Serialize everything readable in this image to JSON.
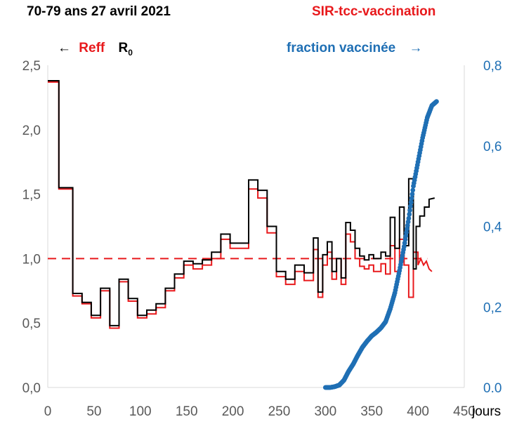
{
  "header": {
    "title": "70-79 ans  27 avril 2021",
    "model": "SIR-tcc-vaccination",
    "legend_left_arrow": "←",
    "legend_reff": "Reff",
    "legend_r0": "R",
    "legend_r0_sub": "0",
    "legend_right": "fraction vaccinée",
    "legend_right_arrow": "→"
  },
  "colors": {
    "reff": "#e8191c",
    "r0": "#000000",
    "vaccine": "#1f6fb4",
    "threshold": "#e8191c"
  },
  "chart_data": {
    "type": "line",
    "xlabel": "jours",
    "xlim": [
      0,
      450
    ],
    "x_ticks": [
      "0",
      "50",
      "100",
      "150",
      "200",
      "250",
      "300",
      "350",
      "400",
      "450"
    ],
    "y_left": {
      "ylim": [
        0,
        2.5
      ],
      "ticks": [
        "0,0",
        "0,5",
        "1,0",
        "1,5",
        "2,0",
        "2,5"
      ]
    },
    "y_right": {
      "ylim": [
        0,
        0.8
      ],
      "ticks": [
        "0.0",
        "0,2",
        "0,4",
        "0,6",
        "0,8"
      ]
    },
    "threshold": {
      "value": 1.0,
      "style": "dashed"
    },
    "series": [
      {
        "name": "Reff",
        "axis": "left",
        "step": true,
        "points": [
          [
            0,
            2.37
          ],
          [
            10,
            2.37
          ],
          [
            10,
            2.37
          ],
          [
            12,
            2.37
          ],
          [
            12,
            1.54
          ],
          [
            17,
            1.54
          ],
          [
            17,
            1.54
          ],
          [
            27,
            1.54
          ],
          [
            27,
            0.71
          ],
          [
            37,
            0.71
          ],
          [
            37,
            0.65
          ],
          [
            47,
            0.65
          ],
          [
            47,
            0.54
          ],
          [
            57,
            0.54
          ],
          [
            57,
            0.75
          ],
          [
            67,
            0.75
          ],
          [
            67,
            0.46
          ],
          [
            77,
            0.46
          ],
          [
            77,
            0.82
          ],
          [
            87,
            0.82
          ],
          [
            87,
            0.67
          ],
          [
            97,
            0.67
          ],
          [
            97,
            0.54
          ],
          [
            107,
            0.54
          ],
          [
            107,
            0.57
          ],
          [
            117,
            0.57
          ],
          [
            117,
            0.62
          ],
          [
            127,
            0.62
          ],
          [
            127,
            0.75
          ],
          [
            137,
            0.75
          ],
          [
            137,
            0.85
          ],
          [
            147,
            0.85
          ],
          [
            147,
            0.95
          ],
          [
            157,
            0.95
          ],
          [
            157,
            0.92
          ],
          [
            167,
            0.92
          ],
          [
            167,
            0.95
          ],
          [
            177,
            0.95
          ],
          [
            177,
            1.0
          ],
          [
            187,
            1.0
          ],
          [
            187,
            1.15
          ],
          [
            197,
            1.15
          ],
          [
            197,
            1.08
          ],
          [
            217,
            1.08
          ],
          [
            217,
            1.54
          ],
          [
            227,
            1.54
          ],
          [
            227,
            1.47
          ],
          [
            237,
            1.47
          ],
          [
            237,
            1.2
          ],
          [
            247,
            1.2
          ],
          [
            247,
            0.86
          ],
          [
            257,
            0.86
          ],
          [
            257,
            0.8
          ],
          [
            267,
            0.8
          ],
          [
            267,
            0.9
          ],
          [
            277,
            0.9
          ],
          [
            277,
            0.83
          ],
          [
            287,
            0.83
          ],
          [
            287,
            1.07
          ],
          [
            292,
            1.07
          ],
          [
            292,
            0.7
          ],
          [
            297,
            0.7
          ],
          [
            297,
            0.95
          ],
          [
            302,
            0.95
          ],
          [
            302,
            1.05
          ],
          [
            307,
            1.05
          ],
          [
            307,
            0.84
          ],
          [
            312,
            0.84
          ],
          [
            312,
            1.0
          ],
          [
            317,
            1.0
          ],
          [
            317,
            0.8
          ],
          [
            322,
            0.8
          ],
          [
            322,
            1.19
          ],
          [
            327,
            1.19
          ],
          [
            327,
            1.13
          ],
          [
            332,
            1.13
          ],
          [
            332,
            1.0
          ],
          [
            337,
            1.0
          ],
          [
            337,
            0.94
          ],
          [
            342,
            0.94
          ],
          [
            342,
            0.92
          ],
          [
            347,
            0.92
          ],
          [
            347,
            0.95
          ],
          [
            352,
            0.95
          ],
          [
            352,
            0.9
          ],
          [
            360,
            0.9
          ],
          [
            360,
            0.96
          ],
          [
            365,
            0.96
          ],
          [
            365,
            0.88
          ],
          [
            370,
            0.88
          ],
          [
            370,
            1.1
          ],
          [
            375,
            1.1
          ],
          [
            375,
            0.9
          ],
          [
            380,
            0.9
          ],
          [
            380,
            1.15
          ],
          [
            385,
            1.15
          ],
          [
            385,
            0.95
          ],
          [
            390,
            0.95
          ],
          [
            390,
            0.7
          ],
          [
            395,
            0.7
          ],
          [
            395,
            1.05
          ],
          [
            400,
            1.05
          ],
          [
            400,
            0.95
          ],
          [
            403,
            1.0
          ],
          [
            406,
            0.95
          ],
          [
            409,
            0.98
          ],
          [
            412,
            0.92
          ],
          [
            415,
            0.9
          ]
        ]
      },
      {
        "name": "R0",
        "axis": "left",
        "step": true,
        "points": [
          [
            0,
            2.38
          ],
          [
            12,
            2.38
          ],
          [
            12,
            1.55
          ],
          [
            27,
            1.55
          ],
          [
            27,
            0.73
          ],
          [
            37,
            0.73
          ],
          [
            37,
            0.66
          ],
          [
            47,
            0.66
          ],
          [
            47,
            0.56
          ],
          [
            57,
            0.56
          ],
          [
            57,
            0.77
          ],
          [
            67,
            0.77
          ],
          [
            67,
            0.48
          ],
          [
            77,
            0.48
          ],
          [
            77,
            0.84
          ],
          [
            87,
            0.84
          ],
          [
            87,
            0.69
          ],
          [
            97,
            0.69
          ],
          [
            97,
            0.56
          ],
          [
            107,
            0.56
          ],
          [
            107,
            0.6
          ],
          [
            117,
            0.6
          ],
          [
            117,
            0.65
          ],
          [
            127,
            0.65
          ],
          [
            127,
            0.77
          ],
          [
            137,
            0.77
          ],
          [
            137,
            0.88
          ],
          [
            147,
            0.88
          ],
          [
            147,
            0.98
          ],
          [
            157,
            0.98
          ],
          [
            157,
            0.96
          ],
          [
            167,
            0.96
          ],
          [
            167,
            0.99
          ],
          [
            177,
            0.99
          ],
          [
            177,
            1.05
          ],
          [
            187,
            1.05
          ],
          [
            187,
            1.19
          ],
          [
            197,
            1.19
          ],
          [
            197,
            1.12
          ],
          [
            217,
            1.12
          ],
          [
            217,
            1.61
          ],
          [
            227,
            1.61
          ],
          [
            227,
            1.53
          ],
          [
            237,
            1.53
          ],
          [
            237,
            1.25
          ],
          [
            247,
            1.25
          ],
          [
            247,
            0.9
          ],
          [
            257,
            0.9
          ],
          [
            257,
            0.84
          ],
          [
            267,
            0.84
          ],
          [
            267,
            0.95
          ],
          [
            277,
            0.95
          ],
          [
            277,
            0.89
          ],
          [
            287,
            0.89
          ],
          [
            287,
            1.16
          ],
          [
            292,
            1.16
          ],
          [
            292,
            0.74
          ],
          [
            297,
            0.74
          ],
          [
            297,
            1.03
          ],
          [
            302,
            1.03
          ],
          [
            302,
            1.13
          ],
          [
            307,
            1.13
          ],
          [
            307,
            0.9
          ],
          [
            312,
            0.9
          ],
          [
            312,
            1.0
          ],
          [
            317,
            1.0
          ],
          [
            317,
            0.85
          ],
          [
            322,
            0.85
          ],
          [
            322,
            1.28
          ],
          [
            327,
            1.28
          ],
          [
            327,
            1.22
          ],
          [
            332,
            1.22
          ],
          [
            332,
            1.08
          ],
          [
            337,
            1.08
          ],
          [
            337,
            1.02
          ],
          [
            342,
            1.02
          ],
          [
            342,
            0.99
          ],
          [
            347,
            0.99
          ],
          [
            347,
            1.03
          ],
          [
            352,
            1.03
          ],
          [
            352,
            1.0
          ],
          [
            360,
            1.0
          ],
          [
            360,
            1.05
          ],
          [
            365,
            1.05
          ],
          [
            365,
            1.02
          ],
          [
            370,
            1.02
          ],
          [
            370,
            1.32
          ],
          [
            375,
            1.32
          ],
          [
            375,
            1.08
          ],
          [
            380,
            1.08
          ],
          [
            380,
            1.4
          ],
          [
            385,
            1.4
          ],
          [
            385,
            1.1
          ],
          [
            390,
            1.1
          ],
          [
            390,
            1.62
          ],
          [
            395,
            1.62
          ],
          [
            395,
            0.92
          ],
          [
            398,
            0.92
          ],
          [
            398,
            1.25
          ],
          [
            402,
            1.25
          ],
          [
            402,
            1.33
          ],
          [
            407,
            1.33
          ],
          [
            407,
            1.4
          ],
          [
            412,
            1.4
          ],
          [
            412,
            1.46
          ],
          [
            418,
            1.47
          ]
        ]
      },
      {
        "name": "fraction vaccinée",
        "axis": "right",
        "marker": "dot",
        "points": [
          [
            300,
            0.0
          ],
          [
            305,
            0.0
          ],
          [
            310,
            0.002
          ],
          [
            315,
            0.006
          ],
          [
            320,
            0.018
          ],
          [
            325,
            0.04
          ],
          [
            330,
            0.058
          ],
          [
            335,
            0.08
          ],
          [
            340,
            0.1
          ],
          [
            345,
            0.115
          ],
          [
            350,
            0.128
          ],
          [
            355,
            0.137
          ],
          [
            360,
            0.148
          ],
          [
            365,
            0.163
          ],
          [
            370,
            0.195
          ],
          [
            375,
            0.235
          ],
          [
            380,
            0.29
          ],
          [
            385,
            0.35
          ],
          [
            390,
            0.42
          ],
          [
            395,
            0.5
          ],
          [
            400,
            0.56
          ],
          [
            405,
            0.62
          ],
          [
            410,
            0.67
          ],
          [
            415,
            0.7
          ],
          [
            420,
            0.71
          ]
        ]
      }
    ]
  }
}
